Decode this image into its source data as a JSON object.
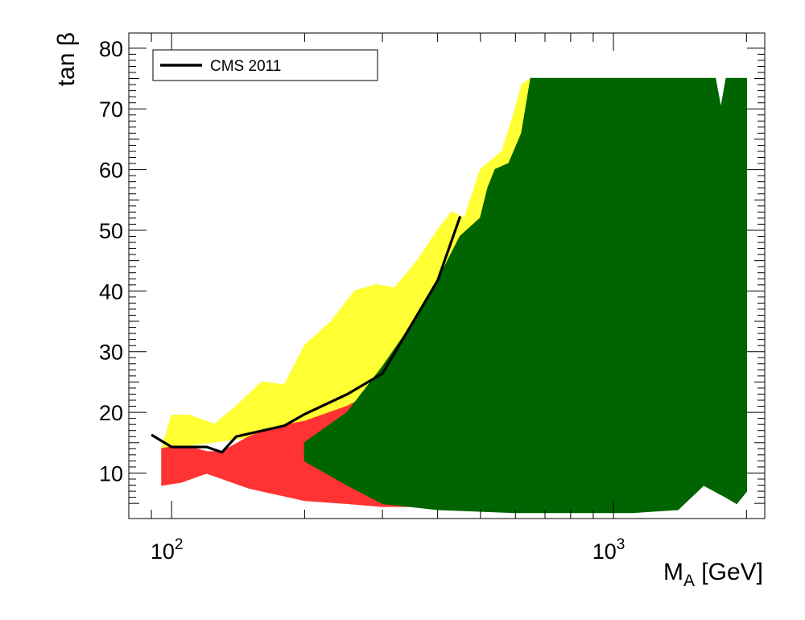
{
  "chart_data": {
    "type": "scatter",
    "xlabel": "M",
    "xlabel_sub": "A",
    "xlabel_unit": " [GeV]",
    "ylabel": "tan β",
    "xscale": "log",
    "xlim": [
      80,
      2200
    ],
    "ylim": [
      2.5,
      82.5
    ],
    "x_ticks": [
      {
        "value": 100,
        "base": "10",
        "exp": "2"
      },
      {
        "value": 1000,
        "base": "10",
        "exp": "3"
      }
    ],
    "y_ticks": [
      10,
      20,
      30,
      40,
      50,
      60,
      70,
      80
    ],
    "grid": false,
    "legend_position": "top-left",
    "legend": [
      {
        "label": "CMS 2011",
        "color": "#000000"
      }
    ],
    "colors": {
      "yellow": "#ffff33",
      "red": "#ff3333",
      "green": "#006400",
      "line": "#000000"
    },
    "series": [
      {
        "name": "CMS 2011",
        "kind": "line",
        "x": [
          90,
          100,
          120,
          130,
          140,
          180,
          200,
          250,
          300,
          400,
          450
        ],
        "y": [
          16.3,
          14.3,
          14.3,
          13.4,
          16.0,
          17.8,
          19.7,
          23.0,
          26.4,
          41.7,
          52.3
        ]
      },
      {
        "kind": "region",
        "color": "#ffff33",
        "x": [
          95,
          100,
          110,
          125,
          140,
          160,
          180,
          200,
          230,
          260,
          290,
          320,
          360,
          400,
          430,
          460,
          500,
          560,
          600,
          620,
          650,
          650,
          400
        ],
        "y": [
          14,
          19.5,
          19.5,
          18,
          21,
          25,
          24.5,
          31,
          35,
          40,
          41,
          40.5,
          45,
          50,
          53,
          52,
          60,
          63,
          70,
          74,
          75,
          30,
          20
        ]
      },
      {
        "kind": "region",
        "color": "#ff3333",
        "x": [
          95,
          100,
          110,
          120,
          130,
          150,
          170,
          200,
          250,
          300,
          350,
          400,
          400,
          300,
          250,
          200,
          150,
          120,
          105,
          95
        ],
        "y": [
          14,
          14.3,
          14.3,
          13.5,
          13.5,
          16,
          17.5,
          18.5,
          21,
          24,
          25,
          24,
          4.5,
          4.5,
          5,
          5.5,
          7.5,
          10,
          8.5,
          8
        ]
      },
      {
        "kind": "region",
        "color": "#006400",
        "x": [
          200,
          250,
          300,
          350,
          400,
          450,
          500,
          520,
          540,
          580,
          620,
          650,
          700,
          1000,
          1500,
          1600,
          1700,
          1750,
          1800,
          1900,
          2000,
          2000,
          1900,
          1800,
          1600,
          1400,
          1100,
          800,
          600,
          400,
          300,
          250,
          200
        ],
        "y": [
          15,
          20,
          27.5,
          34.5,
          41.7,
          49,
          52,
          57,
          60,
          61,
          66,
          75,
          75,
          75,
          75,
          75,
          75,
          70,
          75,
          75,
          75,
          7,
          5,
          6,
          8,
          4,
          3.5,
          3.5,
          3.5,
          4,
          5,
          8,
          12
        ]
      }
    ]
  }
}
